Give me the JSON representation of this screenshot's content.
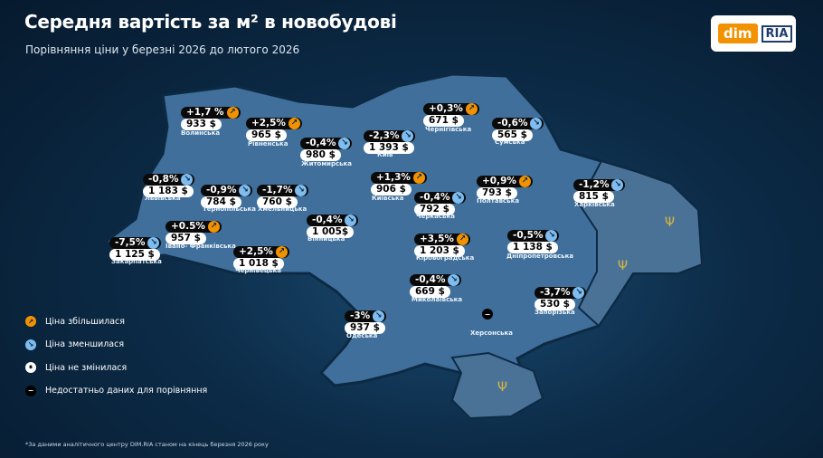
{
  "title": "Середня вартість за м² в новобудові",
  "subtitle": "Порівняння ціни у березні 2026 до лютого 2026",
  "logo": {
    "left": "dim",
    "right": "RIA"
  },
  "colors": {
    "increase": "#f39200",
    "decrease": "#7fbdf0",
    "map": "#3f6f9a"
  },
  "regions": [
    {
      "name": "Волинська",
      "change": "+1,7 %",
      "trend": "up",
      "price": "933 $"
    },
    {
      "name": "Рівненська",
      "change": "+2,5%",
      "trend": "up",
      "price": "965 $"
    },
    {
      "name": "Житомирська",
      "change": "-0,4%",
      "trend": "down",
      "price": "980 $"
    },
    {
      "name": "Київ",
      "change": "-2,3%",
      "trend": "down",
      "price": "1 393 $"
    },
    {
      "name": "Чернігівська",
      "change": "+0,3%",
      "trend": "up",
      "price": "671 $"
    },
    {
      "name": "Сумська",
      "change": "-0,6%",
      "trend": "down",
      "price": "565 $"
    },
    {
      "name": "Львівська",
      "change": "-0,8%",
      "trend": "down",
      "price": "1 183 $"
    },
    {
      "name": "Тернопільська",
      "change": "-0,9%",
      "trend": "down",
      "price": "784 $"
    },
    {
      "name": "Хмельницька",
      "change": "-1,7%",
      "trend": "down",
      "price": "760 $"
    },
    {
      "name": "Київська",
      "change": "+1,3%",
      "trend": "up",
      "price": "906 $"
    },
    {
      "name": "Черкаська",
      "change": "-0,4%",
      "trend": "down",
      "price": "792 $"
    },
    {
      "name": "Полтавська",
      "change": "+0,9%",
      "trend": "up",
      "price": "793 $"
    },
    {
      "name": "Харківська",
      "change": "-1,2%",
      "trend": "down",
      "price": "815 $"
    },
    {
      "name": "Вінницька",
      "change": "-0,4%",
      "trend": "down",
      "price": "1 005$"
    },
    {
      "name": "Івано- Франківська",
      "change": "+0.5%",
      "trend": "up",
      "price": "957 $"
    },
    {
      "name": "Закарпатська",
      "change": "-7,5%",
      "trend": "down",
      "price": "1 125 $"
    },
    {
      "name": "Чернівецька",
      "change": "+2,5%",
      "trend": "up",
      "price": "1 018 $"
    },
    {
      "name": "Кіровоградська",
      "change": "+3,5%",
      "trend": "up",
      "price": "1 203 $"
    },
    {
      "name": "Дніпропетровська",
      "change": "-0,5%",
      "trend": "down",
      "price": "1 138 $"
    },
    {
      "name": "Миколаївська",
      "change": "-0,4%",
      "trend": "down",
      "price": "669 $"
    },
    {
      "name": "Запорізька",
      "change": "-3,7%",
      "trend": "down",
      "price": "530 $"
    },
    {
      "name": "Одеська",
      "change": "-3%",
      "trend": "down",
      "price": "937 $"
    },
    {
      "name": "Херсонська",
      "trend": "nodata"
    }
  ],
  "legend": [
    {
      "icon": "up",
      "label": "Ціна збільшилася"
    },
    {
      "icon": "down",
      "label": "Ціна зменшилася"
    },
    {
      "icon": "same",
      "label": "Ціна не змінилася"
    },
    {
      "icon": "nodata",
      "label": "Недостатньо даних для порівняння"
    }
  ],
  "footnote": "*За даними аналітичного центру DIM.RIA станом на кінець березня 2026 року"
}
